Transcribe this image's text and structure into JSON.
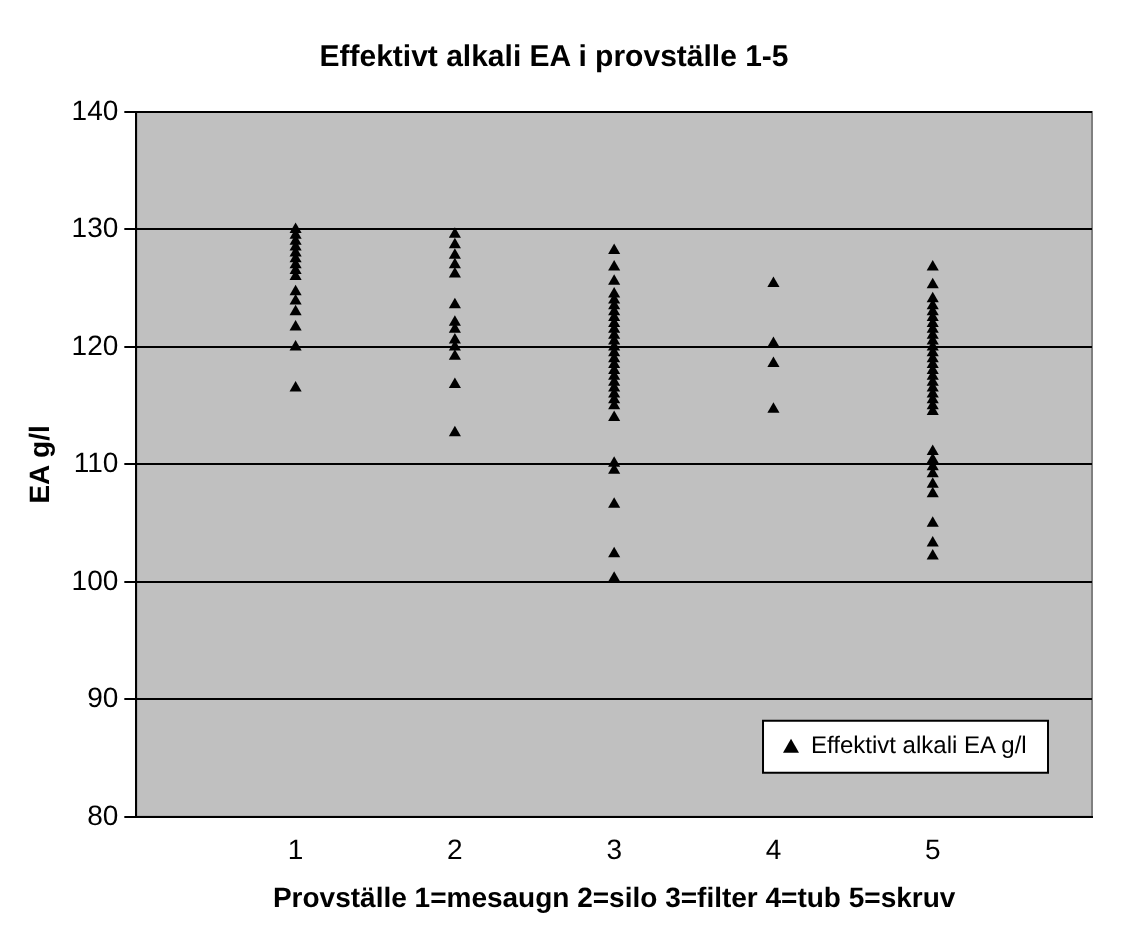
{
  "chart_data": {
    "type": "scatter",
    "title": "Effektivt alkali EA i provställe 1-5",
    "xlabel": "Provställe 1=mesaugn 2=silo 3=filter 4=tub 5=skruv",
    "ylabel": "EA g/l",
    "xlim": [
      0,
      6
    ],
    "xticks": [
      {
        "value": 0,
        "label": null
      },
      1,
      2,
      3,
      4,
      5,
      {
        "value": 6,
        "label": null
      }
    ],
    "ylim": [
      80,
      140
    ],
    "yticks": [
      80,
      90,
      100,
      110,
      120,
      130,
      140
    ],
    "grid": "y",
    "legend": "bottom right",
    "marker": "triangle",
    "series": [
      {
        "name": "Effektivt alkali EA g/l",
        "color": "#000000",
        "x": [
          1,
          1,
          1,
          1,
          1,
          1,
          1,
          1,
          1,
          1,
          1,
          1,
          1,
          1,
          1,
          2,
          2,
          2,
          2,
          2,
          2,
          2,
          2,
          2,
          2,
          2,
          2,
          2,
          3,
          3,
          3,
          3,
          3,
          3,
          3,
          3,
          3,
          3,
          3,
          3,
          3,
          3,
          3,
          3,
          3,
          3,
          3,
          3,
          3,
          3,
          3,
          3,
          3,
          3,
          3,
          3,
          3,
          4,
          4,
          4,
          4,
          5,
          5,
          5,
          5,
          5,
          5,
          5,
          5,
          5,
          5,
          5,
          5,
          5,
          5,
          5,
          5,
          5,
          5,
          5,
          5,
          5,
          5,
          5,
          5,
          5,
          5,
          5,
          5,
          5,
          5,
          5
        ],
        "values": [
          130,
          129.5,
          129,
          128.5,
          128,
          127.5,
          127,
          126.5,
          126,
          124.7,
          123.9,
          123,
          121.7,
          120,
          116.5,
          129.6,
          128.7,
          127.8,
          127,
          126.2,
          123.6,
          122.1,
          121.5,
          120.6,
          120,
          119.2,
          116.8,
          112.7,
          128.2,
          126.8,
          125.6,
          124.5,
          124,
          123.5,
          123,
          122.5,
          122,
          121.5,
          121,
          120.5,
          120,
          119.5,
          119,
          118.5,
          118,
          117.5,
          117,
          116.5,
          116,
          115.5,
          115,
          114,
          110.1,
          109.5,
          106.6,
          102.4,
          100.3,
          125.4,
          120.3,
          118.6,
          114.7,
          126.8,
          125.3,
          124.1,
          123.5,
          123,
          122.5,
          122,
          121.5,
          121,
          120.5,
          120,
          119.5,
          119,
          118.5,
          118,
          117.5,
          117,
          116.5,
          116,
          115.5,
          115,
          114.5,
          111.1,
          110.4,
          109.8,
          109.2,
          108.3,
          107.5,
          105,
          103.3,
          102.2
        ]
      }
    ]
  }
}
